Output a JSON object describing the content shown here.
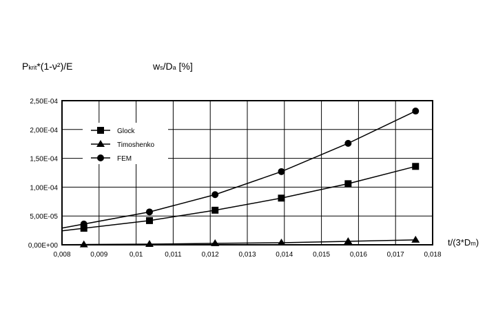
{
  "chart_data": {
    "type": "line",
    "ylabel": {
      "main": "P",
      "sub": "krit",
      "rest": "*(1-ν²)/E"
    },
    "ylabel2": {
      "main": "w",
      "sub": "s",
      "mid": "/D",
      "sub2": "a",
      "rest": " [%]"
    },
    "xlabel": {
      "main": "t/(3*D",
      "sub": "m",
      "rest": ")"
    },
    "xlim": [
      0.008,
      0.018
    ],
    "ylim": [
      0,
      0.00025
    ],
    "xticks": [
      0.008,
      0.009,
      0.01,
      0.011,
      0.012,
      0.013,
      0.014,
      0.015,
      0.016,
      0.017,
      0.018
    ],
    "xtick_labels": [
      "0,008",
      "0,009",
      "0,01",
      "0,011",
      "0,012",
      "0,013",
      "0,014",
      "0,015",
      "0,016",
      "0,017",
      "0,018"
    ],
    "yticks": [
      0,
      5e-05,
      0.0001,
      0.00015,
      0.0002,
      0.00025
    ],
    "ytick_labels": [
      "0,00E+00",
      "5,00E-05",
      "1,00E-04",
      "1,50E-04",
      "2,00E-04",
      "2,50E-04"
    ],
    "grid": true,
    "legend_position": "top-left",
    "series": [
      {
        "name": "Glock",
        "marker": "square",
        "x": [
          0.00859,
          0.01036,
          0.01213,
          0.01392,
          0.01572,
          0.01754
        ],
        "y": [
          2.87e-05,
          4.2e-05,
          6e-05,
          8.1e-05,
          0.000106,
          0.000136
        ]
      },
      {
        "name": "Timoshenko",
        "marker": "triangle",
        "x": [
          0.00859,
          0.01036,
          0.01213,
          0.01392,
          0.01572,
          0.01754
        ],
        "y": [
          5e-07,
          1.2e-06,
          2.5e-06,
          3.6e-06,
          6e-06,
          8.5e-06
        ]
      },
      {
        "name": "FEM",
        "marker": "circle",
        "x": [
          0.00859,
          0.01036,
          0.01213,
          0.01392,
          0.01572,
          0.01754
        ],
        "y": [
          3.6e-05,
          5.7e-05,
          8.7e-05,
          0.000127,
          0.000176,
          0.000232
        ]
      }
    ]
  }
}
